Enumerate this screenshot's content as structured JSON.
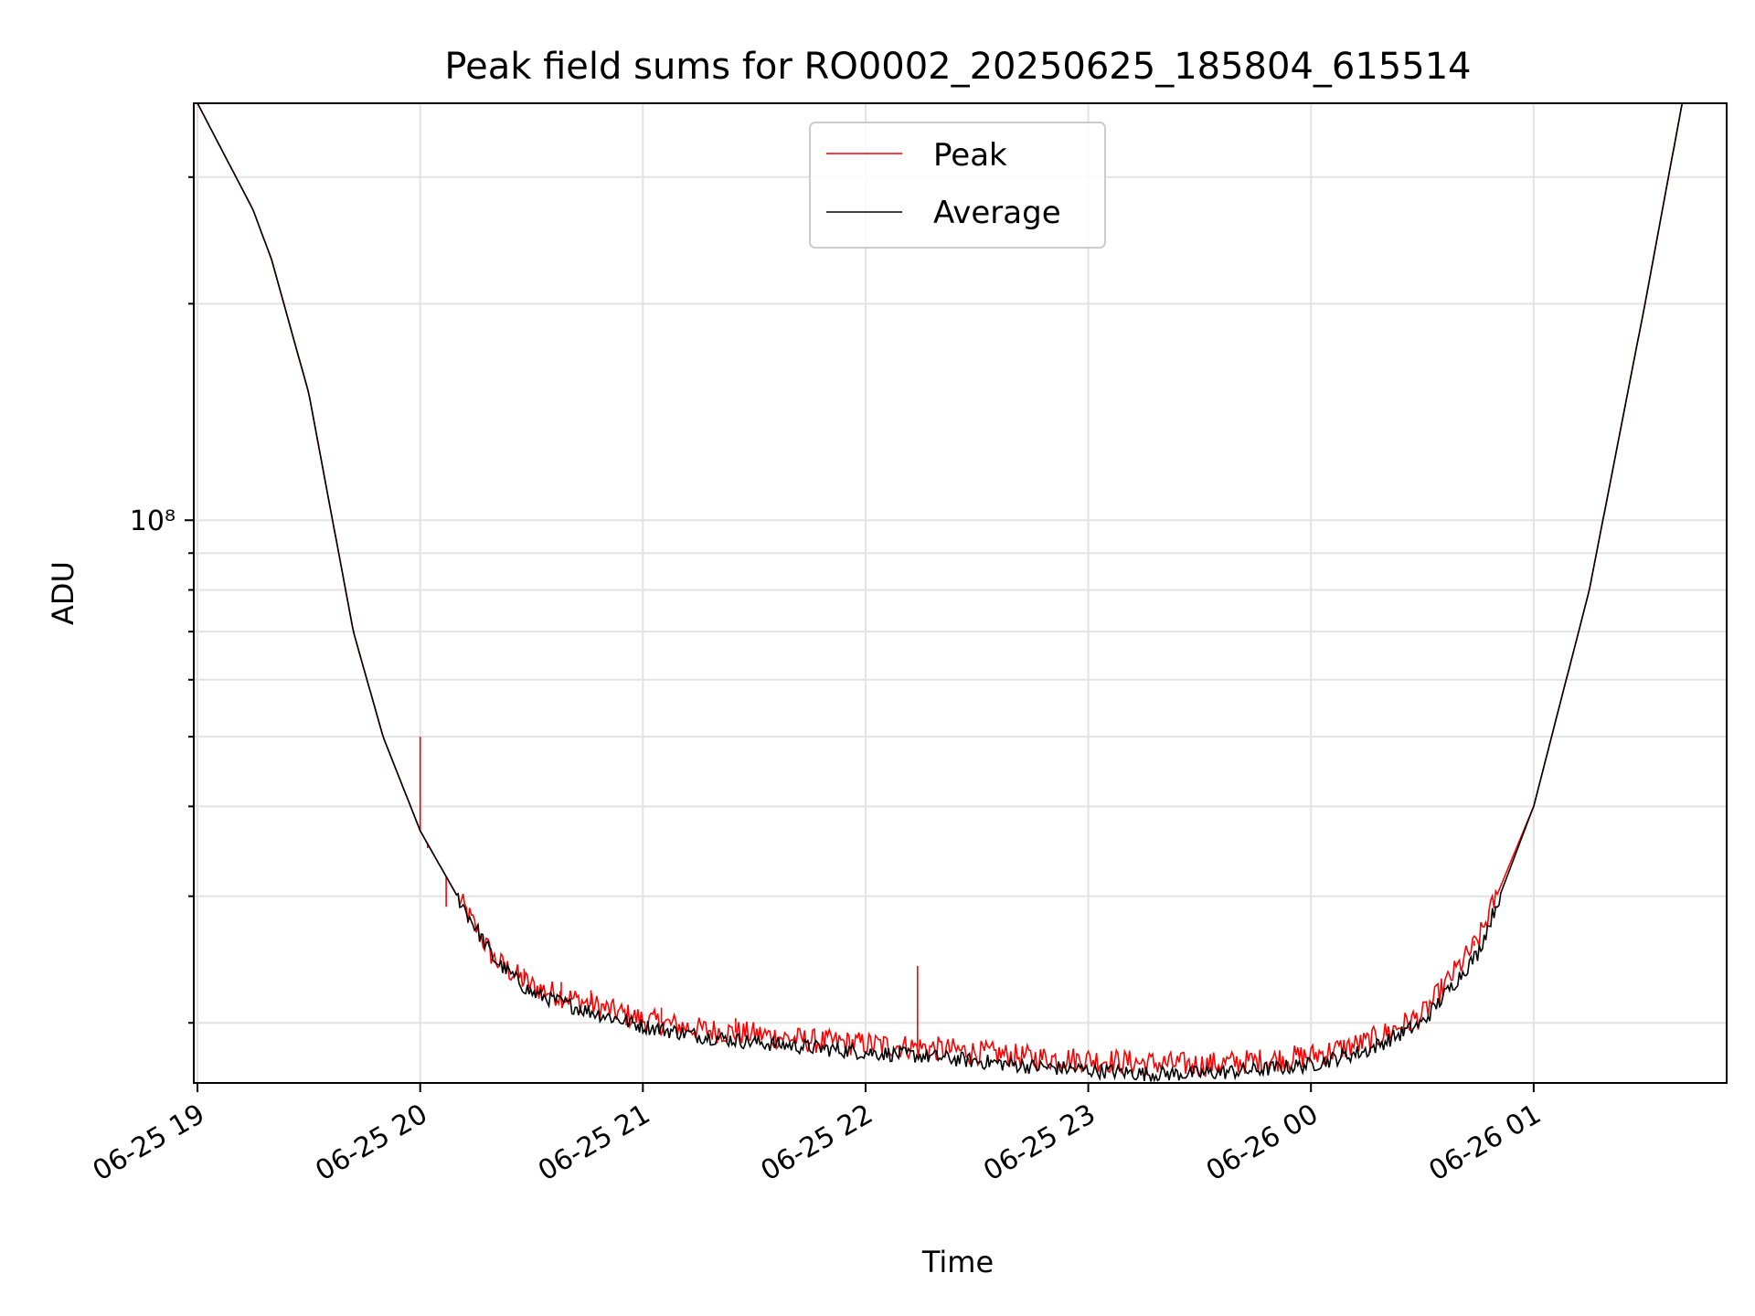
{
  "chart_data": {
    "type": "line",
    "title": "Peak field sums for RO0002_20250625_185804_615514",
    "xlabel": "Time",
    "ylabel": "ADU",
    "yscale": "log",
    "x_ticks": [
      "06-25 19",
      "06-25 20",
      "06-25 21",
      "06-25 22",
      "06-25 23",
      "06-26 00",
      "06-26 01"
    ],
    "y_ticks": [
      {
        "value": 100000000,
        "label": "10⁸"
      }
    ],
    "xlim": [
      "2025-06-25 18:59",
      "2025-06-26 01:52"
    ],
    "ylim": [
      16500000,
      380000000
    ],
    "grid": true,
    "legend_position": "top-center",
    "series": [
      {
        "name": "Peak",
        "color": "#ff0000",
        "points": [
          [
            "2025-06-25 19:00",
            380000000
          ],
          [
            "2025-06-25 19:15",
            270000000
          ],
          [
            "2025-06-25 19:20",
            230000000
          ],
          [
            "2025-06-25 19:30",
            150000000
          ],
          [
            "2025-06-25 19:42",
            70000000
          ],
          [
            "2025-06-25 19:50",
            50000000
          ],
          [
            "2025-06-25 20:00",
            37000000
          ],
          [
            "2025-06-25 20:10",
            30000000
          ],
          [
            "2025-06-25 20:20",
            24500000
          ],
          [
            "2025-06-25 20:30",
            22500000
          ],
          [
            "2025-06-25 20:45",
            21300000
          ],
          [
            "2025-06-25 21:00",
            20200000
          ],
          [
            "2025-06-25 21:15",
            19600000
          ],
          [
            "2025-06-25 21:30",
            19300000
          ],
          [
            "2025-06-25 21:45",
            18900000
          ],
          [
            "2025-06-25 22:00",
            18700000
          ],
          [
            "2025-06-25 22:15",
            18500000
          ],
          [
            "2025-06-25 22:30",
            18200000
          ],
          [
            "2025-06-25 22:45",
            17900000
          ],
          [
            "2025-06-25 23:00",
            17800000
          ],
          [
            "2025-06-25 23:15",
            17600000
          ],
          [
            "2025-06-25 23:30",
            17500000
          ],
          [
            "2025-06-25 23:45",
            17700000
          ],
          [
            "2025-06-26 00:00",
            18000000
          ],
          [
            "2025-06-26 00:15",
            18800000
          ],
          [
            "2025-06-26 00:30",
            20500000
          ],
          [
            "2025-06-26 00:45",
            26000000
          ],
          [
            "2025-06-26 01:00",
            40000000
          ],
          [
            "2025-06-26 01:15",
            80000000
          ],
          [
            "2025-06-26 01:30",
            200000000
          ],
          [
            "2025-06-26 01:40",
            380000000
          ]
        ],
        "spikes": [
          [
            "2025-06-25 20:00",
            50000000
          ],
          [
            "2025-06-25 20:02",
            35000000
          ],
          [
            "2025-06-25 20:07",
            29000000
          ],
          [
            "2025-06-25 20:28",
            23800000
          ],
          [
            "2025-06-25 20:38",
            22800000
          ],
          [
            "2025-06-25 20:46",
            22200000
          ],
          [
            "2025-06-25 21:05",
            21000000
          ],
          [
            "2025-06-25 21:25",
            20300000
          ],
          [
            "2025-06-25 22:14",
            24000000
          ],
          [
            "2025-06-26 00:44",
            26000000
          ]
        ]
      },
      {
        "name": "Average",
        "color": "#000000",
        "points": [
          [
            "2025-06-25 19:00",
            380000000
          ],
          [
            "2025-06-25 19:15",
            270000000
          ],
          [
            "2025-06-25 19:20",
            230000000
          ],
          [
            "2025-06-25 19:30",
            150000000
          ],
          [
            "2025-06-25 19:42",
            70000000
          ],
          [
            "2025-06-25 19:50",
            50000000
          ],
          [
            "2025-06-25 20:00",
            37000000
          ],
          [
            "2025-06-25 20:10",
            30000000
          ],
          [
            "2025-06-25 20:20",
            24500000
          ],
          [
            "2025-06-25 20:30",
            22000000
          ],
          [
            "2025-06-25 20:45",
            20800000
          ],
          [
            "2025-06-25 21:00",
            19800000
          ],
          [
            "2025-06-25 21:15",
            19200000
          ],
          [
            "2025-06-25 21:30",
            18800000
          ],
          [
            "2025-06-25 21:45",
            18500000
          ],
          [
            "2025-06-25 22:00",
            18200000
          ],
          [
            "2025-06-25 22:15",
            18000000
          ],
          [
            "2025-06-25 22:30",
            17700000
          ],
          [
            "2025-06-25 22:45",
            17400000
          ],
          [
            "2025-06-25 23:00",
            17200000
          ],
          [
            "2025-06-25 23:15",
            17000000
          ],
          [
            "2025-06-25 23:30",
            17000000
          ],
          [
            "2025-06-25 23:45",
            17200000
          ],
          [
            "2025-06-26 00:00",
            17500000
          ],
          [
            "2025-06-26 00:15",
            18300000
          ],
          [
            "2025-06-26 00:30",
            20000000
          ],
          [
            "2025-06-26 00:45",
            25000000
          ],
          [
            "2025-06-26 01:00",
            40000000
          ],
          [
            "2025-06-26 01:15",
            80000000
          ],
          [
            "2025-06-26 01:30",
            200000000
          ],
          [
            "2025-06-26 01:40",
            380000000
          ]
        ]
      }
    ]
  }
}
